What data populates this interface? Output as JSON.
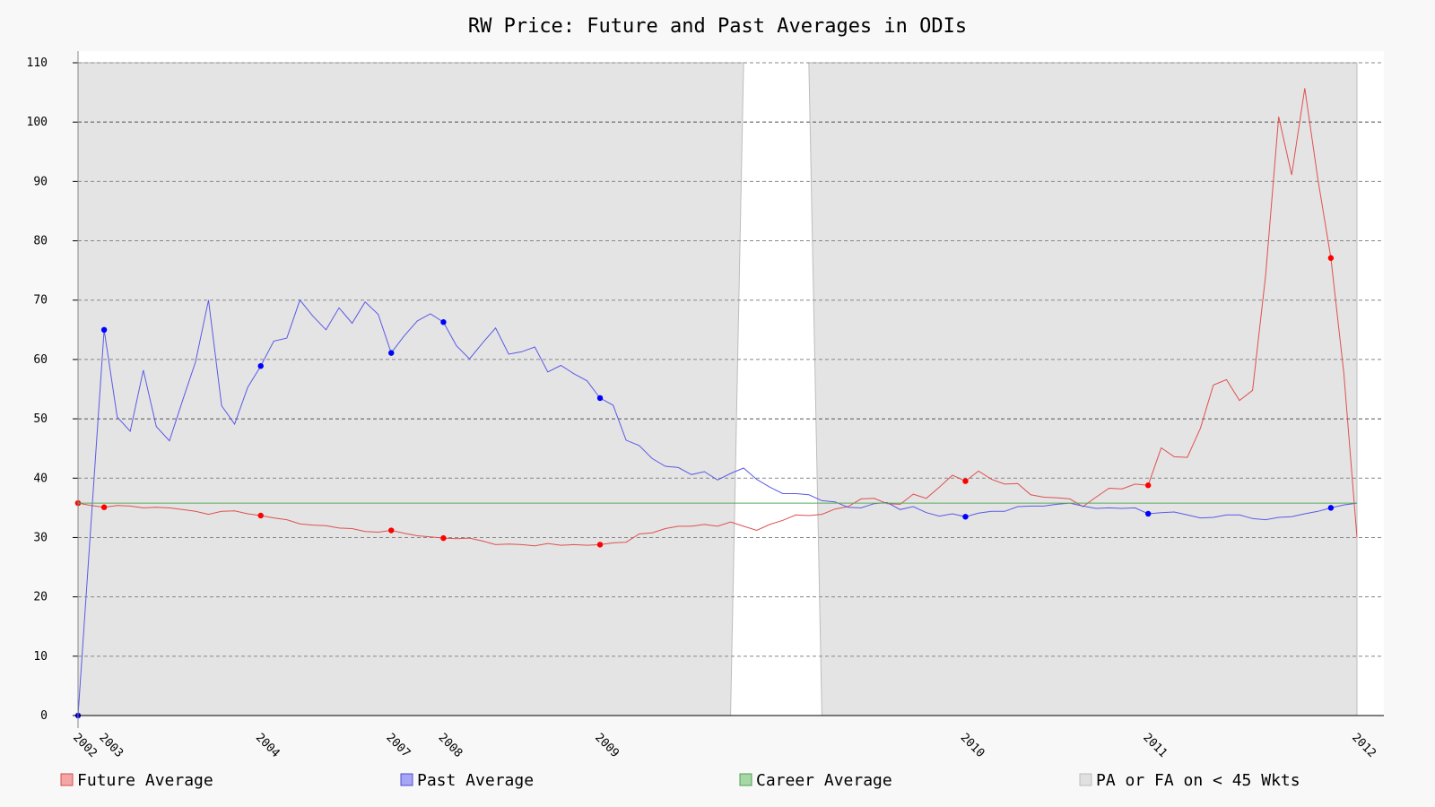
{
  "chart_data": {
    "type": "line",
    "title": "RW Price: Future and Past Averages in ODIs",
    "xlabel": "",
    "ylabel": "",
    "ylim": [
      0,
      110
    ],
    "yticks": [
      0,
      10,
      20,
      30,
      40,
      50,
      60,
      70,
      80,
      90,
      100,
      110
    ],
    "grid": true,
    "legend_position": "bottom",
    "x_tick_labels": [
      {
        "index": 0,
        "label": "2002"
      },
      {
        "index": 1,
        "label": "2003"
      },
      {
        "index": 7,
        "label": "2004"
      },
      {
        "index": 12,
        "label": "2007"
      },
      {
        "index": 14,
        "label": "2008"
      },
      {
        "index": 20,
        "label": "2009"
      },
      {
        "index": 34,
        "label": "2010"
      },
      {
        "index": 41,
        "label": "2011"
      },
      {
        "index": 49,
        "label": "2012"
      }
    ],
    "n_points": 50,
    "series": [
      {
        "name": "Future Average",
        "color": "#e05050",
        "marker_color": "#ff0000",
        "x": [
          0,
          0.5,
          1,
          1.5,
          2,
          2.5,
          3,
          3.5,
          4,
          4.5,
          5,
          5.5,
          6,
          6.5,
          7,
          7.5,
          8,
          8.5,
          9,
          9.5,
          10,
          10.5,
          11,
          11.5,
          12,
          12.5,
          13,
          13.5,
          14,
          14.5,
          15,
          15.5,
          16,
          16.5,
          17,
          17.5,
          18,
          18.5,
          19,
          19.5,
          20,
          20.5,
          21,
          21.5,
          22,
          22.5,
          23,
          23.5,
          24,
          24.5,
          25,
          25.5,
          26,
          26.5,
          27,
          27.5,
          28,
          28.5,
          29,
          29.5,
          30,
          30.5,
          31,
          31.5,
          32,
          32.5,
          33,
          33.5,
          34,
          34.5,
          35,
          35.5,
          36,
          36.5,
          37,
          37.5,
          38,
          38.5,
          39,
          39.5,
          40,
          40.5,
          41,
          41.5,
          42,
          42.5,
          43,
          43.5,
          44,
          44.5,
          45,
          45.5,
          46,
          46.5,
          47,
          47.5,
          48,
          48.5,
          49
        ],
        "values": [
          35.8,
          35.4,
          35.1,
          35.4,
          35.3,
          35.0,
          35.1,
          35.0,
          34.7,
          34.4,
          33.9,
          34.4,
          34.5,
          34.0,
          33.7,
          33.3,
          33.0,
          32.3,
          32.1,
          32.0,
          31.6,
          31.5,
          31.0,
          30.9,
          31.2,
          30.7,
          30.3,
          30.1,
          29.9,
          29.8,
          29.9,
          29.4,
          28.8,
          28.9,
          28.8,
          28.6,
          29.0,
          28.7,
          28.8,
          28.7,
          28.8,
          29.1,
          29.2,
          30.6,
          30.8,
          31.5,
          31.9,
          31.9,
          32.2,
          31.9,
          32.6,
          31.9,
          31.2,
          32.2,
          32.9,
          33.8,
          33.7,
          33.9,
          34.8,
          35.2,
          36.5,
          36.6,
          35.7,
          35.6,
          37.3,
          36.6,
          38.5,
          40.5,
          39.5,
          41.2,
          39.8,
          39.0,
          39.1,
          37.2,
          36.8,
          36.7,
          36.5,
          35.2,
          36.8,
          38.3,
          38.2,
          39.0,
          38.8,
          45.1,
          43.6,
          43.5,
          48.4,
          55.7,
          56.6,
          53.1,
          54.8,
          74.1,
          100.9,
          91.1,
          105.7,
          90.5,
          77.1,
          57.6,
          30.0
        ],
        "marker_indices": [
          0,
          1,
          7,
          12,
          14,
          20,
          34,
          41,
          48
        ]
      },
      {
        "name": "Past Average",
        "color": "#5a5ae6",
        "marker_color": "#0000ff",
        "x": [
          0,
          1,
          1.5,
          2,
          2.5,
          3,
          3.5,
          4,
          4.5,
          5,
          5.5,
          6,
          6.5,
          7,
          7.5,
          8,
          8.5,
          9,
          9.5,
          10,
          10.5,
          11,
          11.5,
          12,
          12.5,
          13,
          13.5,
          14,
          14.5,
          15,
          15.5,
          16,
          16.5,
          17,
          17.5,
          18,
          18.5,
          19,
          19.5,
          20,
          20.5,
          21,
          21.5,
          22,
          22.5,
          23,
          23.5,
          24,
          24.5,
          25,
          25.5,
          26,
          26.5,
          27,
          27.5,
          28,
          28.5,
          29,
          29.5,
          30,
          30.5,
          31,
          31.5,
          32,
          32.5,
          33,
          33.5,
          34,
          34.5,
          35,
          35.5,
          36,
          36.5,
          37,
          37.5,
          38,
          38.5,
          39,
          39.5,
          40,
          40.5,
          41,
          41.5,
          42,
          42.5,
          43,
          43.5,
          44,
          44.5,
          45,
          45.5,
          46,
          46.5,
          47,
          47.5,
          48,
          48.5,
          49
        ],
        "values": [
          0,
          65.0,
          50.3,
          47.9,
          58.2,
          48.7,
          46.3,
          53.0,
          59.6,
          70.0,
          52.2,
          49.1,
          55.3,
          58.9,
          63.1,
          63.6,
          70.0,
          67.3,
          65.0,
          68.7,
          66.1,
          69.7,
          67.6,
          61.1,
          64.0,
          66.5,
          67.7,
          66.3,
          62.3,
          60.1,
          62.8,
          65.3,
          60.9,
          61.3,
          62.1,
          57.9,
          59.0,
          57.6,
          56.4,
          53.5,
          52.3,
          46.4,
          45.5,
          43.3,
          42.0,
          41.8,
          40.6,
          41.1,
          39.7,
          40.8,
          41.7,
          39.8,
          38.5,
          37.4,
          37.4,
          37.2,
          36.2,
          36.0,
          35.1,
          35.0,
          35.7,
          35.9,
          34.7,
          35.2,
          34.2,
          33.6,
          34.0,
          33.5,
          34.1,
          34.4,
          34.4,
          35.2,
          35.3,
          35.3,
          35.6,
          35.8,
          35.3,
          34.9,
          35.0,
          34.9,
          35.0,
          34.0,
          34.2,
          34.3,
          33.8,
          33.3,
          33.4,
          33.8,
          33.8,
          33.2,
          33.0,
          33.4,
          33.5,
          34.0,
          34.4,
          35.0,
          35.5,
          35.8
        ],
        "marker_indices": [
          0,
          1,
          7,
          12,
          14,
          20,
          34,
          41,
          48
        ]
      },
      {
        "name": "Career Average",
        "color": "#5aaa5a",
        "x": [
          0,
          49
        ],
        "values": [
          35.8,
          35.8
        ]
      }
    ],
    "shaded_region": {
      "name": "PA or FA on < 45 Wkts",
      "fill": "#e4e4e4",
      "gap_x_bottom": [
        25,
        28.5
      ],
      "gap_x_top": [
        25.5,
        28
      ]
    }
  },
  "legend": {
    "items": [
      {
        "label": "Future Average",
        "swatch": "#f4a6a6",
        "border": "#d05050"
      },
      {
        "label": "Past Average",
        "swatch": "#a6a6f4",
        "border": "#5050d0"
      },
      {
        "label": "Career Average",
        "swatch": "#a6d8a6",
        "border": "#50a050"
      },
      {
        "label": "PA or FA on < 45 Wkts",
        "swatch": "#e0e0e0",
        "border": "#bbbbbb"
      }
    ]
  }
}
